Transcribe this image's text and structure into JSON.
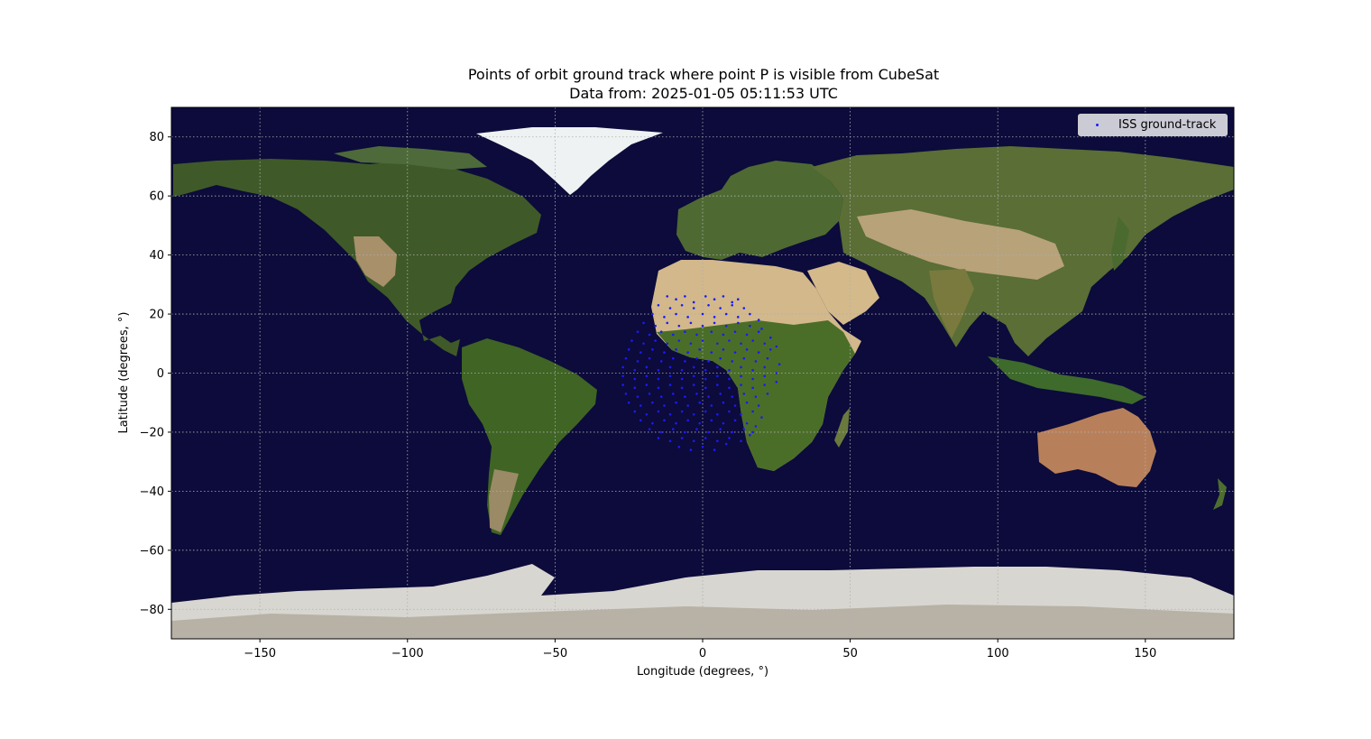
{
  "chart_data": {
    "type": "scatter",
    "title": "Points of orbit ground track where point P is visible from CubeSat",
    "subtitle": "Data from: 2025-01-05 05:11:53 UTC",
    "xlabel": "Longitude (degrees, °)",
    "ylabel": "Latitude (degrees, °)",
    "xlim": [
      -180,
      180
    ],
    "ylim": [
      -90,
      90
    ],
    "xticks": [
      -150,
      -100,
      -50,
      0,
      50,
      100,
      150
    ],
    "yticks": [
      -80,
      -60,
      -40,
      -20,
      0,
      20,
      40,
      60,
      80
    ],
    "xtick_labels": [
      "−150",
      "−100",
      "−50",
      "0",
      "50",
      "100",
      "150"
    ],
    "ytick_labels": [
      "−80",
      "−60",
      "−40",
      "−20",
      "0",
      "20",
      "40",
      "60",
      "80"
    ],
    "grid": true,
    "background": "world map (satellite imagery)",
    "legend": {
      "position": "top-right",
      "entries": [
        "ISS ground-track"
      ]
    },
    "series": [
      {
        "name": "ISS ground-track",
        "color": "#1a1aff",
        "marker": "dot",
        "points": [
          [
            -12,
            26
          ],
          [
            -9,
            25
          ],
          [
            -6,
            26
          ],
          [
            -3,
            24
          ],
          [
            1,
            26
          ],
          [
            4,
            25
          ],
          [
            7,
            26
          ],
          [
            10,
            24
          ],
          [
            12,
            25
          ],
          [
            -15,
            23
          ],
          [
            -11,
            22
          ],
          [
            -7,
            23
          ],
          [
            -3,
            22
          ],
          [
            2,
            23
          ],
          [
            6,
            22
          ],
          [
            10,
            23
          ],
          [
            14,
            22
          ],
          [
            -17,
            20
          ],
          [
            -13,
            19
          ],
          [
            -9,
            20
          ],
          [
            -5,
            19
          ],
          [
            0,
            20
          ],
          [
            4,
            19
          ],
          [
            8,
            20
          ],
          [
            12,
            19
          ],
          [
            16,
            20
          ],
          [
            19,
            18
          ],
          [
            -20,
            17
          ],
          [
            -16,
            16
          ],
          [
            -12,
            17
          ],
          [
            -8,
            16
          ],
          [
            -4,
            17
          ],
          [
            0,
            16
          ],
          [
            4,
            17
          ],
          [
            8,
            16
          ],
          [
            12,
            17
          ],
          [
            16,
            16
          ],
          [
            20,
            15
          ],
          [
            -22,
            14
          ],
          [
            -18,
            13
          ],
          [
            -14,
            14
          ],
          [
            -10,
            13
          ],
          [
            -6,
            14
          ],
          [
            -2,
            13
          ],
          [
            3,
            14
          ],
          [
            7,
            13
          ],
          [
            11,
            14
          ],
          [
            15,
            13
          ],
          [
            19,
            14
          ],
          [
            23,
            12
          ],
          [
            -24,
            11
          ],
          [
            -20,
            10
          ],
          [
            -16,
            11
          ],
          [
            -12,
            10
          ],
          [
            -8,
            11
          ],
          [
            -4,
            10
          ],
          [
            0,
            11
          ],
          [
            5,
            10
          ],
          [
            9,
            11
          ],
          [
            13,
            10
          ],
          [
            17,
            11
          ],
          [
            21,
            10
          ],
          [
            25,
            9
          ],
          [
            -25,
            8
          ],
          [
            -21,
            7
          ],
          [
            -17,
            8
          ],
          [
            -13,
            7
          ],
          [
            -9,
            8
          ],
          [
            -5,
            7
          ],
          [
            -1,
            8
          ],
          [
            3,
            7
          ],
          [
            7,
            8
          ],
          [
            11,
            7
          ],
          [
            15,
            8
          ],
          [
            19,
            7
          ],
          [
            23,
            8
          ],
          [
            -26,
            5
          ],
          [
            -22,
            4
          ],
          [
            -18,
            5
          ],
          [
            -14,
            4
          ],
          [
            -10,
            5
          ],
          [
            -6,
            4
          ],
          [
            -2,
            5
          ],
          [
            2,
            4
          ],
          [
            6,
            5
          ],
          [
            10,
            4
          ],
          [
            14,
            5
          ],
          [
            18,
            4
          ],
          [
            22,
            5
          ],
          [
            26,
            3
          ],
          [
            -27,
            2
          ],
          [
            -23,
            1
          ],
          [
            -19,
            2
          ],
          [
            -15,
            1
          ],
          [
            -11,
            2
          ],
          [
            -7,
            1
          ],
          [
            -3,
            2
          ],
          [
            1,
            1
          ],
          [
            5,
            2
          ],
          [
            9,
            1
          ],
          [
            13,
            2
          ],
          [
            17,
            1
          ],
          [
            21,
            2
          ],
          [
            25,
            0
          ],
          [
            -27,
            -1
          ],
          [
            -23,
            -2
          ],
          [
            -19,
            -1
          ],
          [
            -15,
            -2
          ],
          [
            -11,
            -1
          ],
          [
            -7,
            -2
          ],
          [
            -3,
            -1
          ],
          [
            1,
            -2
          ],
          [
            5,
            -1
          ],
          [
            9,
            -2
          ],
          [
            13,
            -1
          ],
          [
            17,
            -2
          ],
          [
            21,
            -1
          ],
          [
            25,
            -3
          ],
          [
            -27,
            -4
          ],
          [
            -23,
            -5
          ],
          [
            -19,
            -4
          ],
          [
            -15,
            -5
          ],
          [
            -11,
            -4
          ],
          [
            -7,
            -5
          ],
          [
            -3,
            -4
          ],
          [
            1,
            -5
          ],
          [
            5,
            -4
          ],
          [
            9,
            -5
          ],
          [
            13,
            -4
          ],
          [
            17,
            -5
          ],
          [
            21,
            -4
          ],
          [
            -26,
            -7
          ],
          [
            -22,
            -8
          ],
          [
            -18,
            -7
          ],
          [
            -14,
            -8
          ],
          [
            -10,
            -7
          ],
          [
            -6,
            -8
          ],
          [
            -2,
            -7
          ],
          [
            2,
            -8
          ],
          [
            6,
            -7
          ],
          [
            10,
            -8
          ],
          [
            14,
            -7
          ],
          [
            18,
            -8
          ],
          [
            22,
            -7
          ],
          [
            -25,
            -10
          ],
          [
            -21,
            -11
          ],
          [
            -17,
            -10
          ],
          [
            -13,
            -11
          ],
          [
            -9,
            -10
          ],
          [
            -5,
            -11
          ],
          [
            -1,
            -10
          ],
          [
            3,
            -11
          ],
          [
            7,
            -10
          ],
          [
            11,
            -11
          ],
          [
            15,
            -10
          ],
          [
            19,
            -11
          ],
          [
            -23,
            -13
          ],
          [
            -19,
            -14
          ],
          [
            -15,
            -13
          ],
          [
            -11,
            -14
          ],
          [
            -7,
            -13
          ],
          [
            -3,
            -14
          ],
          [
            1,
            -13
          ],
          [
            5,
            -14
          ],
          [
            9,
            -13
          ],
          [
            13,
            -14
          ],
          [
            17,
            -13
          ],
          [
            20,
            -15
          ],
          [
            -21,
            -16
          ],
          [
            -17,
            -17
          ],
          [
            -13,
            -16
          ],
          [
            -9,
            -17
          ],
          [
            -5,
            -16
          ],
          [
            -1,
            -17
          ],
          [
            3,
            -16
          ],
          [
            7,
            -17
          ],
          [
            11,
            -16
          ],
          [
            15,
            -17
          ],
          [
            18,
            -18
          ],
          [
            -18,
            -19
          ],
          [
            -14,
            -20
          ],
          [
            -10,
            -19
          ],
          [
            -6,
            -20
          ],
          [
            -2,
            -19
          ],
          [
            2,
            -20
          ],
          [
            6,
            -19
          ],
          [
            10,
            -20
          ],
          [
            14,
            -19
          ],
          [
            17,
            -20
          ],
          [
            -15,
            -22
          ],
          [
            -11,
            -23
          ],
          [
            -7,
            -22
          ],
          [
            -3,
            -23
          ],
          [
            1,
            -22
          ],
          [
            5,
            -23
          ],
          [
            9,
            -22
          ],
          [
            13,
            -23
          ],
          [
            16,
            -21
          ],
          [
            -8,
            -25
          ],
          [
            -4,
            -26
          ],
          [
            0,
            -25
          ],
          [
            4,
            -26
          ],
          [
            8,
            -24
          ]
        ]
      }
    ]
  }
}
